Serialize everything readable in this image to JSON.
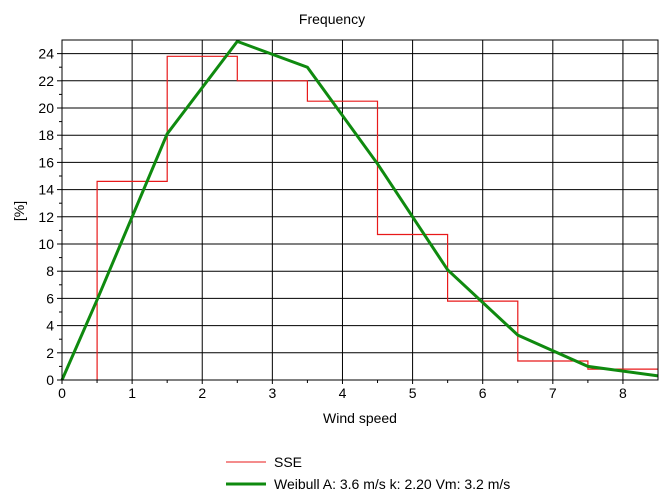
{
  "chart_data": {
    "type": "line",
    "title": "Frequency",
    "xlabel": "Wind speed",
    "ylabel": "[%]",
    "xlim": [
      0,
      8.5
    ],
    "ylim": [
      0,
      25
    ],
    "x_ticks": [
      0,
      1,
      2,
      3,
      4,
      5,
      6,
      7,
      8
    ],
    "y_ticks": [
      0,
      2,
      4,
      6,
      8,
      10,
      12,
      14,
      16,
      18,
      20,
      22,
      24
    ],
    "grid": true,
    "legend_position": "bottom-center",
    "series": [
      {
        "name": "SSE",
        "kind": "step-histogram",
        "color": "#e8191a",
        "x": [
          0.5,
          0.5,
          1.5,
          1.5,
          2.5,
          2.5,
          3.5,
          3.5,
          4.5,
          4.5,
          5.5,
          5.5,
          6.5,
          6.5,
          7.5,
          7.5,
          8.5
        ],
        "y": [
          0,
          14.6,
          14.6,
          23.8,
          23.8,
          22.0,
          22.0,
          20.5,
          20.5,
          10.7,
          10.7,
          5.8,
          5.8,
          1.4,
          1.4,
          0.8,
          0.8
        ]
      },
      {
        "name": "Weibull A: 3.6 m/s k: 2.20 Vm: 3.2 m/s",
        "kind": "line",
        "color": "#0f8a0f",
        "x": [
          0,
          0.5,
          1.5,
          2.5,
          3.5,
          4.5,
          5.5,
          6.5,
          7.5,
          8.5
        ],
        "y": [
          0,
          5.9,
          18.1,
          24.9,
          23.0,
          15.9,
          8.1,
          3.3,
          1.0,
          0.3
        ]
      }
    ]
  }
}
